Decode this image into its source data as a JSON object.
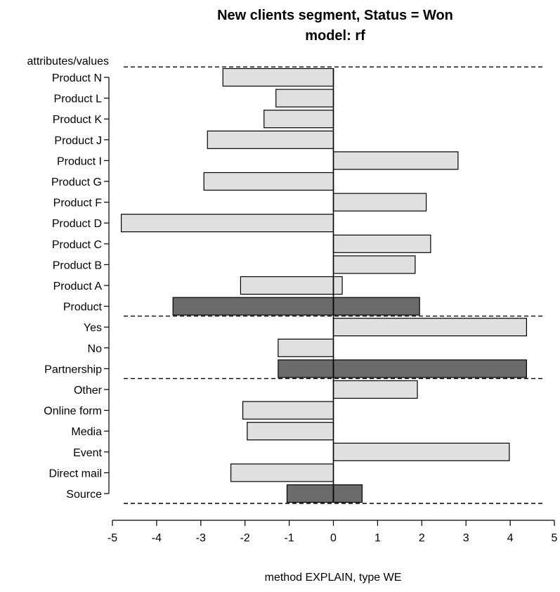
{
  "chart_data": {
    "type": "bar",
    "orientation": "horizontal",
    "title": "New clients segment, Status = Won",
    "subtitle": "model: rf",
    "xlabel": "method EXPLAIN, type WE",
    "ylabel": "attributes/values",
    "xlim": [
      -5,
      5
    ],
    "xticks": [
      -5,
      -4,
      -3,
      -2,
      -1,
      0,
      1,
      2,
      3,
      4,
      5
    ],
    "grid": false,
    "legend": "none",
    "colors": {
      "value_bar": "#e0e0e0",
      "attribute_bar": "#6b6b6b",
      "bar_border": "#000000",
      "separator": "#000000"
    },
    "rows": [
      {
        "label": "Product N",
        "kind": "value",
        "neg": -2.5,
        "pos": 0
      },
      {
        "label": "Product L",
        "kind": "value",
        "neg": -1.3,
        "pos": 0
      },
      {
        "label": "Product K",
        "kind": "value",
        "neg": -1.57,
        "pos": 0
      },
      {
        "label": "Product J",
        "kind": "value",
        "neg": -2.85,
        "pos": 0
      },
      {
        "label": "Product I",
        "kind": "value",
        "neg": 0,
        "pos": 2.82
      },
      {
        "label": "Product G",
        "kind": "value",
        "neg": -2.93,
        "pos": 0
      },
      {
        "label": "Product F",
        "kind": "value",
        "neg": 0,
        "pos": 2.1
      },
      {
        "label": "Product D",
        "kind": "value",
        "neg": -4.8,
        "pos": 0
      },
      {
        "label": "Product C",
        "kind": "value",
        "neg": 0,
        "pos": 2.2
      },
      {
        "label": "Product B",
        "kind": "value",
        "neg": 0,
        "pos": 1.85
      },
      {
        "label": "Product A",
        "kind": "value",
        "neg": -2.1,
        "pos": 0.2
      },
      {
        "label": "Product",
        "kind": "attribute",
        "neg": -3.63,
        "pos": 1.95
      },
      {
        "label": "Yes",
        "kind": "value",
        "neg": 0,
        "pos": 4.37
      },
      {
        "label": "No",
        "kind": "value",
        "neg": -1.25,
        "pos": 0
      },
      {
        "label": "Partnership",
        "kind": "attribute",
        "neg": -1.25,
        "pos": 4.37
      },
      {
        "label": "Other",
        "kind": "value",
        "neg": 0,
        "pos": 1.9
      },
      {
        "label": "Online form",
        "kind": "value",
        "neg": -2.05,
        "pos": 0
      },
      {
        "label": "Media",
        "kind": "value",
        "neg": -1.95,
        "pos": 0
      },
      {
        "label": "Event",
        "kind": "value",
        "neg": 0,
        "pos": 3.98
      },
      {
        "label": "Direct mail",
        "kind": "value",
        "neg": -2.32,
        "pos": 0
      },
      {
        "label": "Source",
        "kind": "attribute",
        "neg": -1.05,
        "pos": 0.65
      }
    ]
  }
}
